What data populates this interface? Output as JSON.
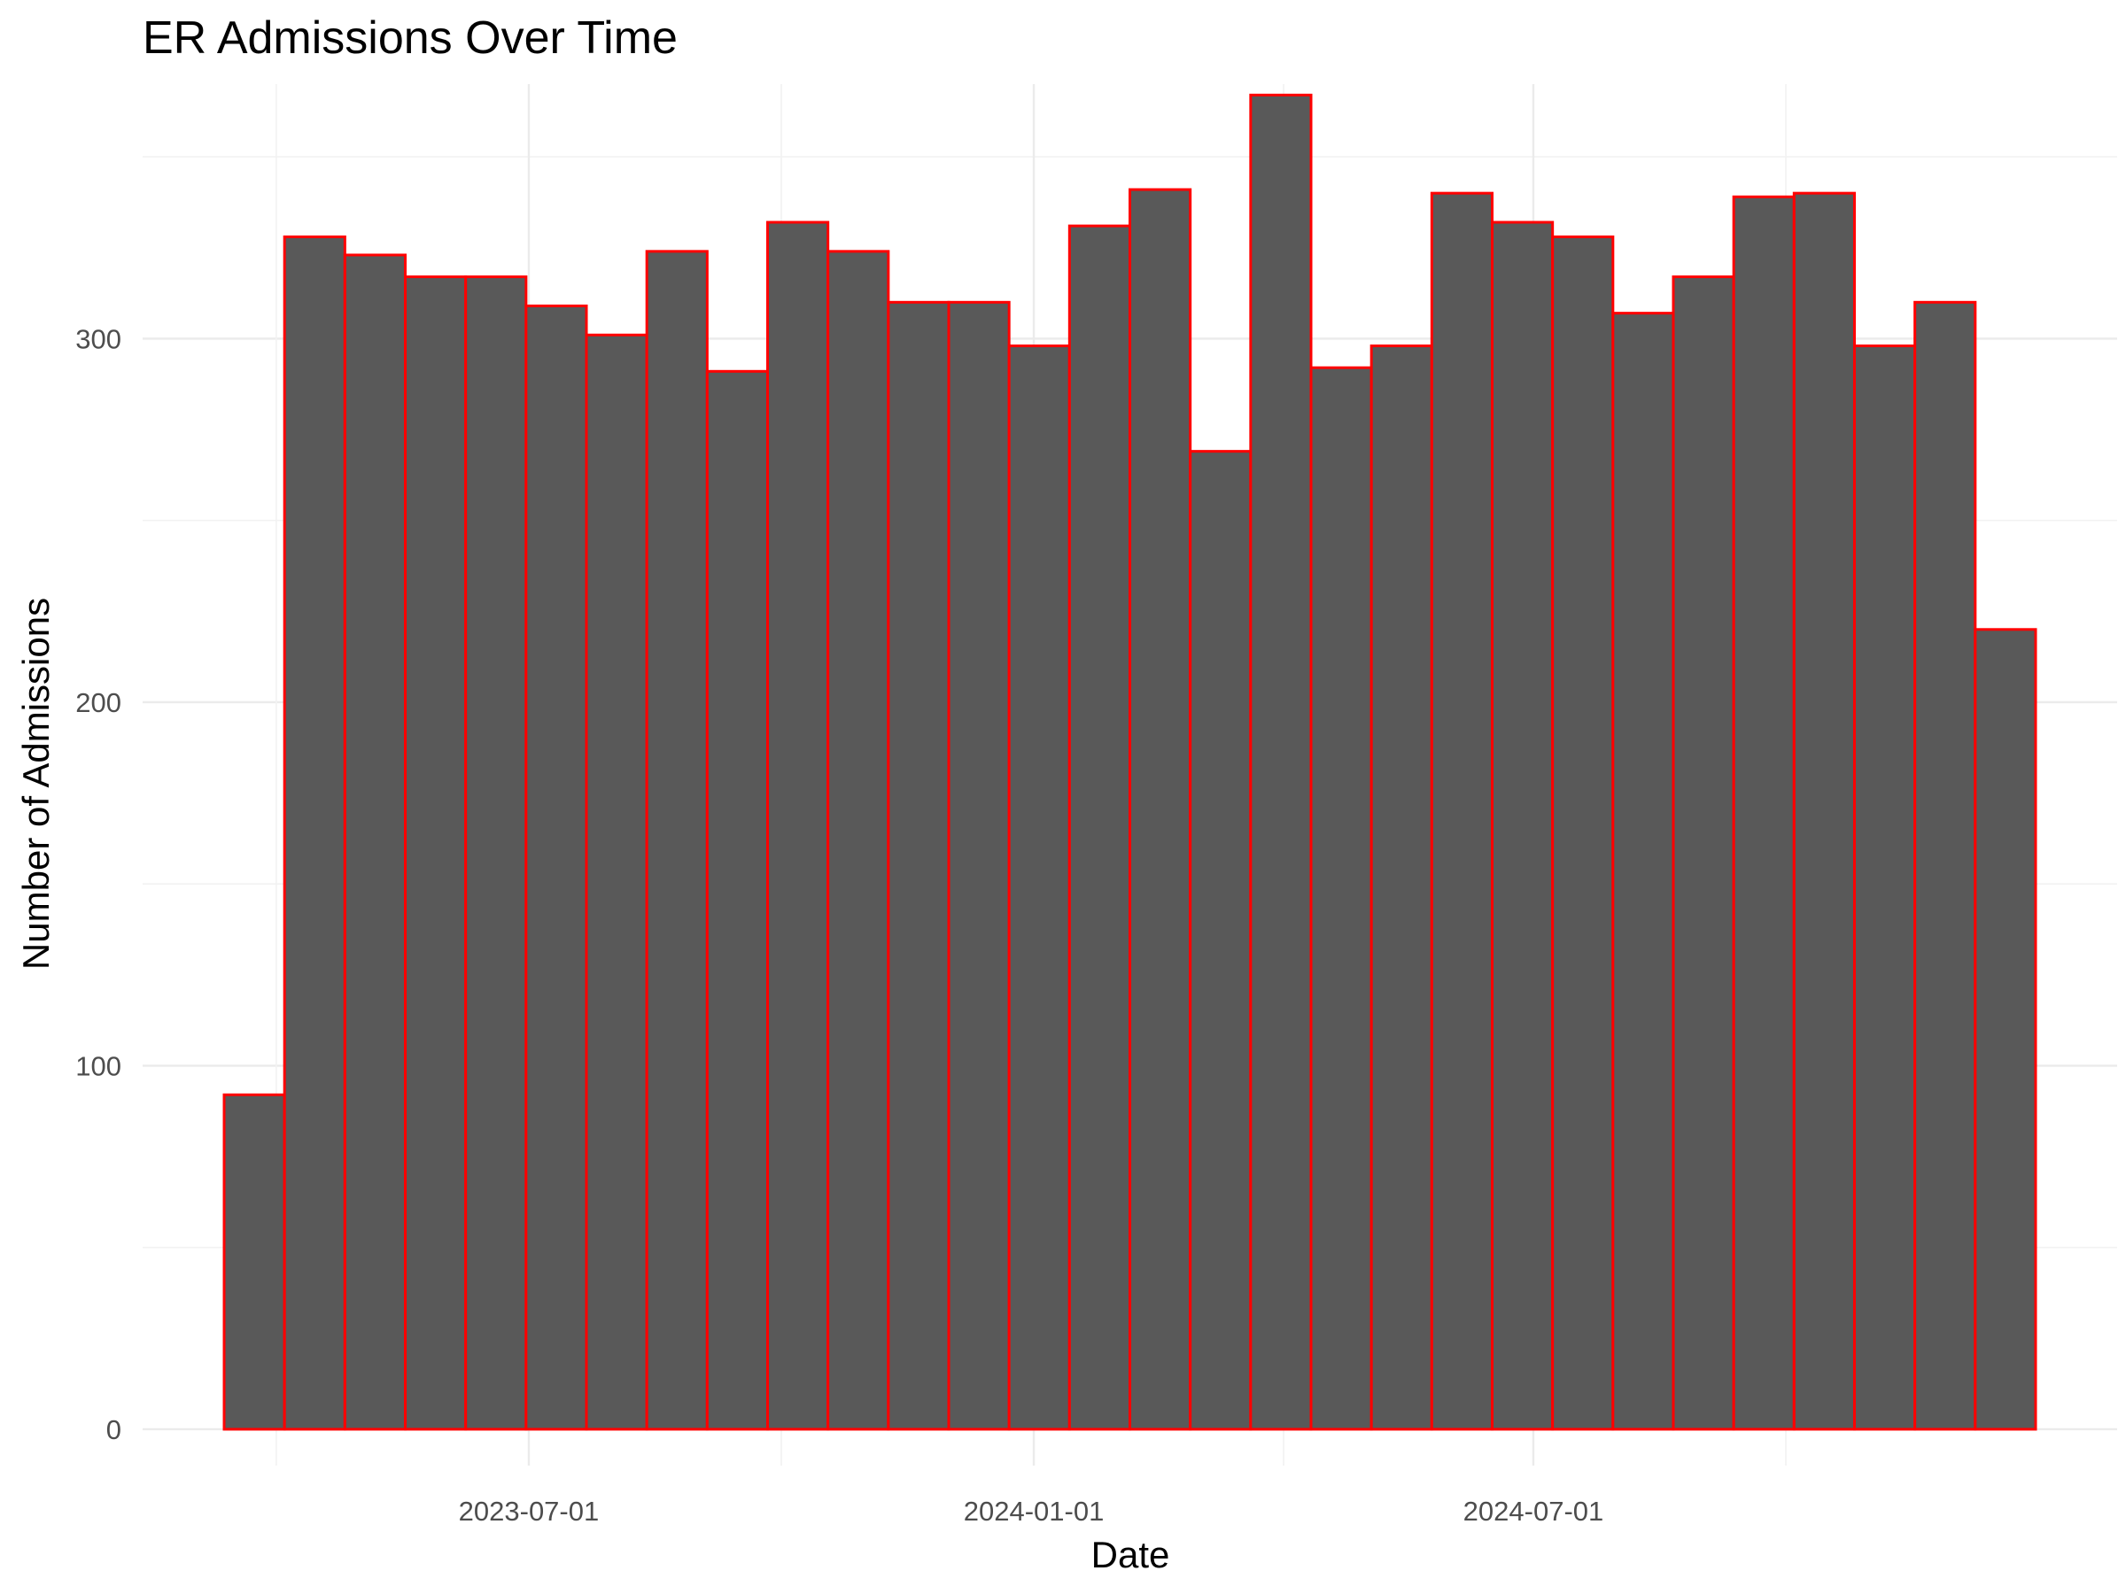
{
  "chart_data": {
    "type": "bar",
    "title": "ER Admissions Over Time",
    "xlabel": "Date",
    "ylabel": "Number of Admissions",
    "x_ticks": [
      "2023-07-01",
      "2024-01-01",
      "2024-07-01"
    ],
    "y_ticks": [
      "0",
      "100",
      "200",
      "300"
    ],
    "ylim": [
      -10,
      370
    ],
    "grid": true,
    "bar_fill": "#595959",
    "bar_outline": "#ff0000",
    "bins": [
      {
        "start": "2023-03-12",
        "end": "2023-04-03",
        "value": 92
      },
      {
        "start": "2023-04-03",
        "end": "2023-04-25",
        "value": 328
      },
      {
        "start": "2023-04-25",
        "end": "2023-05-17",
        "value": 323
      },
      {
        "start": "2023-05-17",
        "end": "2023-06-08",
        "value": 317
      },
      {
        "start": "2023-06-08",
        "end": "2023-06-30",
        "value": 317
      },
      {
        "start": "2023-06-30",
        "end": "2023-07-22",
        "value": 309
      },
      {
        "start": "2023-07-22",
        "end": "2023-08-13",
        "value": 301
      },
      {
        "start": "2023-08-13",
        "end": "2023-09-04",
        "value": 324
      },
      {
        "start": "2023-09-04",
        "end": "2023-09-26",
        "value": 291
      },
      {
        "start": "2023-09-26",
        "end": "2023-10-18",
        "value": 332
      },
      {
        "start": "2023-10-18",
        "end": "2023-11-09",
        "value": 324
      },
      {
        "start": "2023-11-09",
        "end": "2023-12-01",
        "value": 310
      },
      {
        "start": "2023-12-01",
        "end": "2023-12-23",
        "value": 310
      },
      {
        "start": "2023-12-23",
        "end": "2024-01-14",
        "value": 298
      },
      {
        "start": "2024-01-14",
        "end": "2024-02-05",
        "value": 331
      },
      {
        "start": "2024-02-05",
        "end": "2024-02-27",
        "value": 341
      },
      {
        "start": "2024-02-27",
        "end": "2024-03-20",
        "value": 269
      },
      {
        "start": "2024-03-20",
        "end": "2024-04-11",
        "value": 367
      },
      {
        "start": "2024-04-11",
        "end": "2024-05-03",
        "value": 292
      },
      {
        "start": "2024-05-03",
        "end": "2024-05-25",
        "value": 298
      },
      {
        "start": "2024-05-25",
        "end": "2024-06-16",
        "value": 340
      },
      {
        "start": "2024-06-16",
        "end": "2024-07-08",
        "value": 332
      },
      {
        "start": "2024-07-08",
        "end": "2024-07-30",
        "value": 328
      },
      {
        "start": "2024-07-30",
        "end": "2024-08-21",
        "value": 307
      },
      {
        "start": "2024-08-21",
        "end": "2024-09-12",
        "value": 317
      },
      {
        "start": "2024-09-12",
        "end": "2024-10-04",
        "value": 339
      },
      {
        "start": "2024-10-04",
        "end": "2024-10-26",
        "value": 340
      },
      {
        "start": "2024-10-26",
        "end": "2024-11-17",
        "value": 298
      },
      {
        "start": "2024-11-17",
        "end": "2024-12-09",
        "value": 310
      },
      {
        "start": "2024-12-09",
        "end": "2024-12-31",
        "value": 220
      }
    ]
  }
}
